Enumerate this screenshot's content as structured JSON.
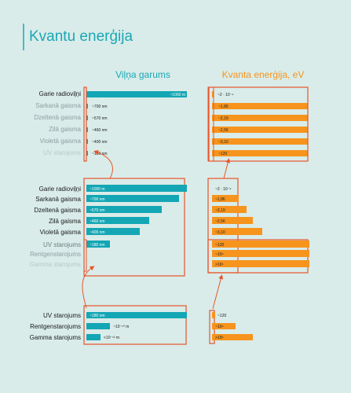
{
  "title": "Kvantu enerģija",
  "headers": {
    "wavelength": "Viļņa garums",
    "energy": "Kvanta enerģija, eV"
  },
  "colors": {
    "teal": "#14a6b4",
    "orange": "#f7941d",
    "frame": "#e8542a",
    "title": "#1aa7b6",
    "text": "#1a1a1a",
    "muted": "#8e9ea0"
  },
  "top": {
    "rows": [
      {
        "label": "Garie radioviļņi",
        "wl": "~1000 m",
        "en": "~2 · 10⁻⁹"
      },
      {
        "label": "Sarkanā gaisma",
        "wl": "~700 nm",
        "en": "~1,86"
      },
      {
        "label": "Dzeltenā gaisma",
        "wl": "~570 nm",
        "en": "~2,19"
      },
      {
        "label": "Zilā gaisma",
        "wl": "~460 nm",
        "en": "~2,56"
      },
      {
        "label": "Violetā gaisma",
        "wl": "~400 nm",
        "en": "~3,10"
      },
      {
        "label": "UV starojums",
        "wl": "~180 nm",
        "en": "~120"
      }
    ]
  },
  "middle": {
    "rows": [
      {
        "label": "Garie radioviļņi",
        "wl": "~1000 m",
        "en": "~2 · 10⁻⁹"
      },
      {
        "label": "Sarkanā gaisma",
        "wl": "~700 nm",
        "en": "~1,86"
      },
      {
        "label": "Dzeltenā gaisma",
        "wl": "~570 nm",
        "en": "~2,19"
      },
      {
        "label": "Zilā gaisma",
        "wl": "~460 nm",
        "en": "~2,56"
      },
      {
        "label": "Violetā gaisma",
        "wl": "~400 nm",
        "en": "~3,10"
      },
      {
        "label": "UV starojums",
        "wl": "~180 nm",
        "en": "~120"
      },
      {
        "label": "Rentgenstarojums",
        "wl": "",
        "en": "~10⁴"
      },
      {
        "label": "Gamma starojums",
        "wl": "",
        "en": ">10⁶"
      }
    ]
  },
  "bottom": {
    "rows": [
      {
        "label": "UV starojums",
        "wl": "~180 nm",
        "en": "~120"
      },
      {
        "label": "Rentgenstarojums",
        "wl": "~10⁻¹⁰ m",
        "en": "~10⁴"
      },
      {
        "label": "Gamma starojums",
        "wl": "<10⁻¹² m",
        "en": ">10⁶"
      }
    ]
  }
}
